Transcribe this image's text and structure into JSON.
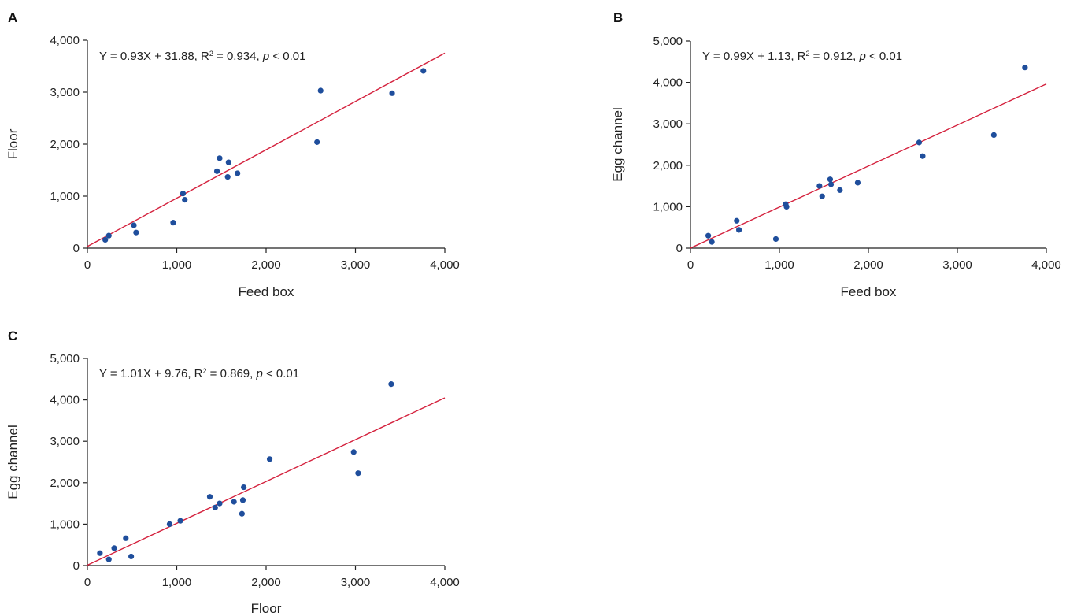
{
  "chart_data": [
    {
      "panel_label": "A",
      "type": "scatter",
      "xlabel": "Feed box",
      "ylabel": "Floor",
      "xlim": [
        0,
        4000
      ],
      "ylim": [
        0,
        4000
      ],
      "xticks": [
        "0",
        "1,000",
        "2,000",
        "3,000",
        "4,000"
      ],
      "yticks": [
        "0",
        "1,000",
        "2,000",
        "3,000",
        "4,000"
      ],
      "equation": {
        "prefix": "Y = 0.93X + 31.88, R",
        "sup": "2",
        "mid": " = 0.934, ",
        "p": "p",
        "suffix": " < 0.01"
      },
      "fit": {
        "slope": 0.93,
        "intercept": 31.88
      },
      "points": [
        {
          "x": 200,
          "y": 160
        },
        {
          "x": 240,
          "y": 240
        },
        {
          "x": 520,
          "y": 440
        },
        {
          "x": 545,
          "y": 300
        },
        {
          "x": 960,
          "y": 490
        },
        {
          "x": 1070,
          "y": 1050
        },
        {
          "x": 1090,
          "y": 930
        },
        {
          "x": 1450,
          "y": 1480
        },
        {
          "x": 1480,
          "y": 1730
        },
        {
          "x": 1570,
          "y": 1370
        },
        {
          "x": 1580,
          "y": 1650
        },
        {
          "x": 1680,
          "y": 1440
        },
        {
          "x": 2570,
          "y": 2040
        },
        {
          "x": 2610,
          "y": 3030
        },
        {
          "x": 3410,
          "y": 2980
        },
        {
          "x": 3760,
          "y": 3410
        }
      ],
      "colors": {
        "points": "#1f4e9c",
        "line": "#d4213d"
      }
    },
    {
      "panel_label": "B",
      "type": "scatter",
      "xlabel": "Feed box",
      "ylabel": "Egg channel",
      "xlim": [
        0,
        4000
      ],
      "ylim": [
        0,
        5000
      ],
      "xticks": [
        "0",
        "1,000",
        "2,000",
        "3,000",
        "4,000"
      ],
      "yticks": [
        "0",
        "1,000",
        "2,000",
        "3,000",
        "4,000",
        "5,000"
      ],
      "equation": {
        "prefix": "Y = 0.99X + 1.13, R",
        "sup": "2",
        "mid": " = 0.912, ",
        "p": "p",
        "suffix": " < 0.01"
      },
      "fit": {
        "slope": 0.99,
        "intercept": 1.13
      },
      "points": [
        {
          "x": 200,
          "y": 300
        },
        {
          "x": 240,
          "y": 150
        },
        {
          "x": 520,
          "y": 660
        },
        {
          "x": 545,
          "y": 440
        },
        {
          "x": 960,
          "y": 220
        },
        {
          "x": 1070,
          "y": 1060
        },
        {
          "x": 1080,
          "y": 1000
        },
        {
          "x": 1450,
          "y": 1500
        },
        {
          "x": 1480,
          "y": 1250
        },
        {
          "x": 1570,
          "y": 1660
        },
        {
          "x": 1580,
          "y": 1540
        },
        {
          "x": 1680,
          "y": 1400
        },
        {
          "x": 1880,
          "y": 1580
        },
        {
          "x": 2570,
          "y": 2550
        },
        {
          "x": 2610,
          "y": 2220
        },
        {
          "x": 3410,
          "y": 2730
        },
        {
          "x": 3760,
          "y": 4360
        }
      ],
      "colors": {
        "points": "#1f4e9c",
        "line": "#d4213d"
      }
    },
    {
      "panel_label": "C",
      "type": "scatter",
      "xlabel": "Floor",
      "ylabel": "Egg channel",
      "xlim": [
        0,
        4000
      ],
      "ylim": [
        0,
        5000
      ],
      "xticks": [
        "0",
        "1,000",
        "2,000",
        "3,000",
        "4,000"
      ],
      "yticks": [
        "0",
        "1,000",
        "2,000",
        "3,000",
        "4,000",
        "5,000"
      ],
      "equation": {
        "prefix": "Y = 1.01X + 9.76, R",
        "sup": "2",
        "mid": " = 0.869, ",
        "p": "p",
        "suffix": " < 0.01"
      },
      "fit": {
        "slope": 1.01,
        "intercept": 9.76
      },
      "points": [
        {
          "x": 140,
          "y": 300
        },
        {
          "x": 240,
          "y": 150
        },
        {
          "x": 300,
          "y": 420
        },
        {
          "x": 430,
          "y": 660
        },
        {
          "x": 490,
          "y": 220
        },
        {
          "x": 920,
          "y": 1000
        },
        {
          "x": 1040,
          "y": 1080
        },
        {
          "x": 1370,
          "y": 1660
        },
        {
          "x": 1430,
          "y": 1400
        },
        {
          "x": 1480,
          "y": 1500
        },
        {
          "x": 1640,
          "y": 1540
        },
        {
          "x": 1730,
          "y": 1250
        },
        {
          "x": 1740,
          "y": 1580
        },
        {
          "x": 1750,
          "y": 1890
        },
        {
          "x": 2040,
          "y": 2570
        },
        {
          "x": 2980,
          "y": 2740
        },
        {
          "x": 3030,
          "y": 2230
        },
        {
          "x": 3400,
          "y": 4380
        }
      ],
      "colors": {
        "points": "#1f4e9c",
        "line": "#d4213d"
      }
    }
  ]
}
